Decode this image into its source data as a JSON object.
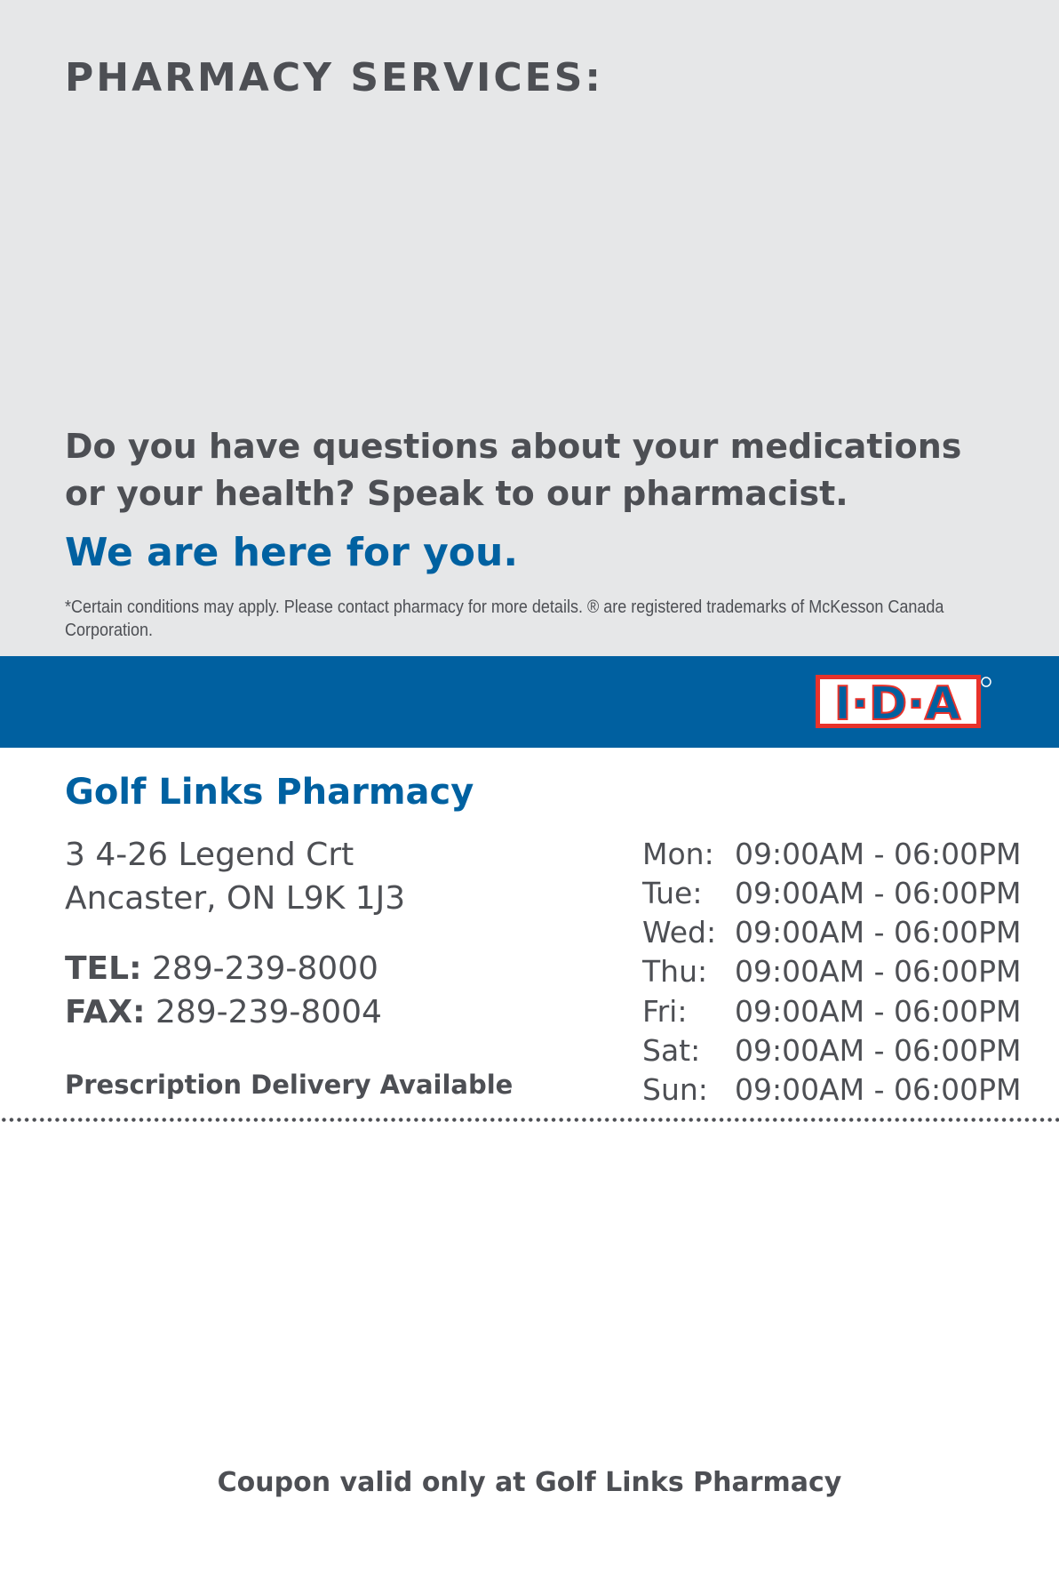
{
  "header": {
    "title": "PHARMACY SERVICES:"
  },
  "promo": {
    "question_line1": "Do you have questions about your medications",
    "question_line2": "or your health? Speak to our pharmacist.",
    "tagline": "We are here for you.",
    "disclaimer": "*Certain conditions may apply. Please contact pharmacy for more details. ® are registered trademarks of McKesson Canada Corporation."
  },
  "brand": {
    "logo_text": "I·D·A",
    "band_color": "#0060a0",
    "logo_red": "#e8322b"
  },
  "store": {
    "name": "Golf Links Pharmacy",
    "address_line1": "3 4-26 Legend Crt",
    "address_line2": "Ancaster, ON L9K 1J3",
    "tel_label": "TEL:",
    "tel": "289-239-8000",
    "fax_label": "FAX:",
    "fax": "289-239-8004",
    "delivery": "Prescription Delivery Available"
  },
  "hours": [
    {
      "day": "Mon:",
      "time": "09:00AM - 06:00PM"
    },
    {
      "day": "Tue:",
      "time": "09:00AM - 06:00PM"
    },
    {
      "day": "Wed:",
      "time": "09:00AM - 06:00PM"
    },
    {
      "day": "Thu:",
      "time": "09:00AM - 06:00PM"
    },
    {
      "day": "Fri:",
      "time": "09:00AM - 06:00PM"
    },
    {
      "day": "Sat:",
      "time": "09:00AM - 06:00PM"
    },
    {
      "day": "Sun:",
      "time": "09:00AM - 06:00PM"
    }
  ],
  "footer": {
    "coupon_note": "Coupon valid only at Golf Links Pharmacy"
  }
}
